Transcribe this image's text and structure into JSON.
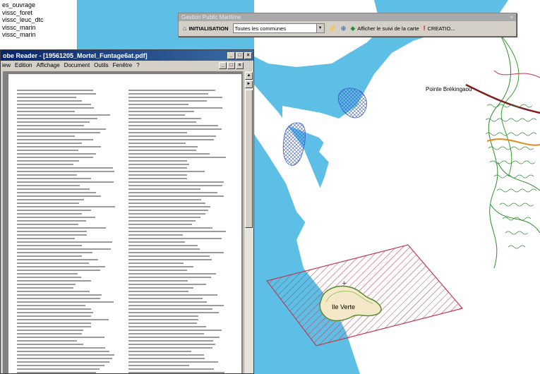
{
  "layers": {
    "items": [
      "es_ouvrage",
      "vissc_foret",
      "vissc_leuc_dtc",
      "vissc_marin",
      "vissc_marin"
    ]
  },
  "toolbar": {
    "title": "Gestion Public Maritime",
    "init_label": "INITIALISATION",
    "commune_value": "Toutes les communes",
    "afficher_label": "Afficher le suivi de la carte",
    "creation_label": "CREATIO..."
  },
  "pdf": {
    "title": "obe Reader - [19561205_Mortel_Funtage6at.pdf]",
    "menu": [
      "iew",
      "Edition",
      "Affichage",
      "Document",
      "Outils",
      "Fenêtre",
      "?"
    ]
  },
  "map": {
    "place_label_1": "Pointe Brékingaou",
    "place_label_2": "Ile Verte",
    "colors": {
      "sea": "#5ebfe6",
      "land": "#ffffff",
      "hatch": "#c0394f",
      "island_fill": "#f3e8c8",
      "island_edge": "#5a8a2e",
      "hatch_blue": "#3a5cc8"
    }
  }
}
